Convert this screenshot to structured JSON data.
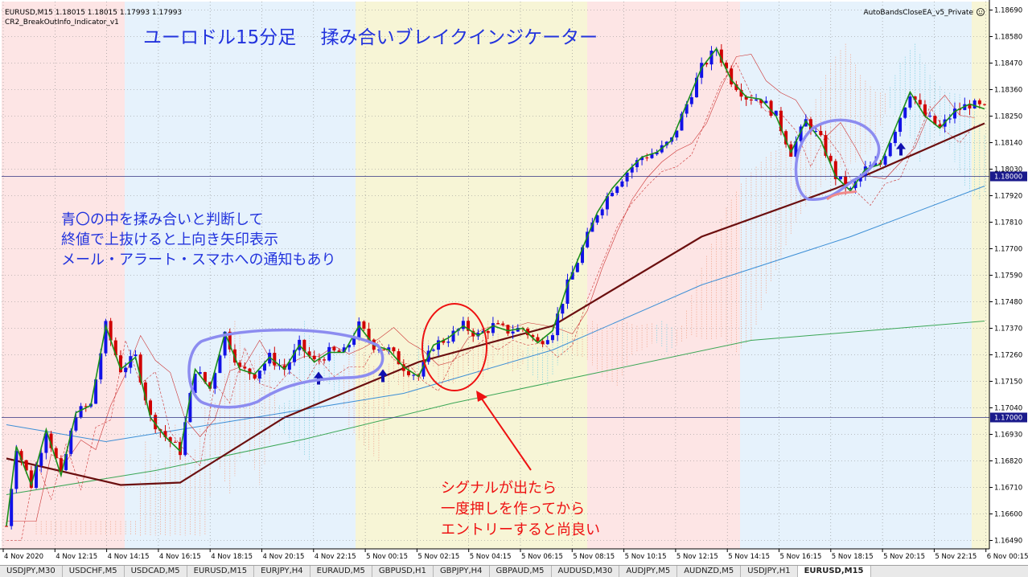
{
  "window": {
    "symbol_info": "EURUSD,M15  1.18015 1.18015 1.17993 1.17993",
    "indicator_name": "CR2_BreakOutInfo_Indicator_v1",
    "ea_label": "AutoBandsCloseEA_v5_Private"
  },
  "annotations": {
    "title": "ユーロドル15分足　 揉み合いブレイクインジケーター",
    "blue_note": [
      "青〇の中を揉み合いと判断して",
      "終値で上抜けると上向き矢印表示",
      "メール・アラート・スマホへの通知もあり"
    ],
    "red_note": [
      "シグナルが出たら",
      "一度押しを作ってから",
      "エントリーすると尚良い"
    ]
  },
  "price_axis": {
    "labels": [
      "1.18690",
      "1.18580",
      "1.18470",
      "1.18360",
      "1.18250",
      "1.18140",
      "1.18030",
      "1.17920",
      "1.17810",
      "1.17700",
      "1.17590",
      "1.17480",
      "1.17370",
      "1.17260",
      "1.17150",
      "1.17040",
      "1.16930",
      "1.16820",
      "1.16710",
      "1.16600",
      "1.16490"
    ],
    "highlight_labels": [
      "1.18000",
      "1.17000"
    ]
  },
  "time_axis": {
    "labels": [
      "4 Nov 2020",
      "4 Nov 12:15",
      "4 Nov 14:15",
      "4 Nov 16:15",
      "4 Nov 18:15",
      "4 Nov 20:15",
      "4 Nov 22:15",
      "5 Nov 00:15",
      "5 Nov 02:15",
      "5 Nov 04:15",
      "5 Nov 06:15",
      "5 Nov 08:15",
      "5 Nov 10:15",
      "5 Nov 12:15",
      "5 Nov 14:15",
      "5 Nov 16:15",
      "5 Nov 18:15",
      "5 Nov 20:15",
      "5 Nov 22:15",
      "6 Nov 00:15"
    ]
  },
  "symbol_tabs": [
    {
      "label": "USDJPY,M30",
      "active": false
    },
    {
      "label": "USDCHF,M5",
      "active": false
    },
    {
      "label": "USDCAD,M5",
      "active": false
    },
    {
      "label": "EURUSD,M15",
      "active": false
    },
    {
      "label": "EURJPY,H4",
      "active": false
    },
    {
      "label": "EURAUD,M5",
      "active": false
    },
    {
      "label": "GBPUSD,H1",
      "active": false
    },
    {
      "label": "GBPJPY,H4",
      "active": false
    },
    {
      "label": "GBPAUD,M5",
      "active": false
    },
    {
      "label": "AUDUSD,M30",
      "active": false
    },
    {
      "label": "AUDJPY,M5",
      "active": false
    },
    {
      "label": "AUDNZD,M5",
      "active": false
    },
    {
      "label": "USDJPY,H1",
      "active": false
    },
    {
      "label": "EURUSD,M15",
      "active": true
    }
  ],
  "colors": {
    "bull": "#1212e6",
    "bear": "#d00000",
    "zigzag": "#1a8f1a",
    "zone_red": "#fde5e5",
    "zone_blue": "#e6f2fc",
    "zone_yellow": "#f7f5d6",
    "annotation_blue": "#2233dd",
    "annotation_red": "#ee1111",
    "circle_blue": "#8c8cf0"
  },
  "chart_data": {
    "type": "candlestick",
    "symbol": "EURUSD",
    "timeframe": "M15",
    "ylim": [
      1.16455,
      1.18725
    ],
    "key_levels": [
      1.18,
      1.17
    ],
    "ohlc_path": [
      [
        0,
        1.1655
      ],
      [
        2,
        1.1688
      ],
      [
        5,
        1.1672
      ],
      [
        8,
        1.1695
      ],
      [
        11,
        1.1676
      ],
      [
        14,
        1.1702
      ],
      [
        17,
        1.1705
      ],
      [
        20,
        1.1738
      ],
      [
        23,
        1.172
      ],
      [
        26,
        1.1725
      ],
      [
        29,
        1.17
      ],
      [
        32,
        1.1692
      ],
      [
        35,
        1.1686
      ],
      [
        38,
        1.172
      ],
      [
        41,
        1.1712
      ],
      [
        44,
        1.1735
      ],
      [
        47,
        1.172
      ],
      [
        50,
        1.1718
      ],
      [
        53,
        1.1725
      ],
      [
        56,
        1.172
      ],
      [
        59,
        1.173
      ],
      [
        62,
        1.1723
      ],
      [
        65,
        1.1727
      ],
      [
        68,
        1.1727
      ],
      [
        71,
        1.1738
      ],
      [
        74,
        1.173
      ],
      [
        77,
        1.1728
      ],
      [
        80,
        1.1721
      ],
      [
        83,
        1.1717
      ],
      [
        86,
        1.173
      ],
      [
        89,
        1.1733
      ],
      [
        92,
        1.1738
      ],
      [
        95,
        1.1734
      ],
      [
        98,
        1.1738
      ],
      [
        101,
        1.1736
      ],
      [
        104,
        1.1737
      ],
      [
        107,
        1.1731
      ],
      [
        110,
        1.1736
      ],
      [
        113,
        1.1755
      ],
      [
        116,
        1.177
      ],
      [
        119,
        1.1785
      ],
      [
        122,
        1.1795
      ],
      [
        125,
        1.1802
      ],
      [
        128,
        1.1808
      ],
      [
        131,
        1.181
      ],
      [
        134,
        1.1815
      ],
      [
        137,
        1.183
      ],
      [
        140,
        1.1845
      ],
      [
        143,
        1.1853
      ],
      [
        146,
        1.184
      ],
      [
        149,
        1.1833
      ],
      [
        152,
        1.1832
      ],
      [
        155,
        1.1825
      ],
      [
        158,
        1.181
      ],
      [
        161,
        1.1823
      ],
      [
        164,
        1.1815
      ],
      [
        167,
        1.18
      ],
      [
        170,
        1.1794
      ],
      [
        173,
        1.1803
      ],
      [
        176,
        1.1805
      ],
      [
        179,
        1.182
      ],
      [
        182,
        1.1835
      ],
      [
        185,
        1.1825
      ],
      [
        188,
        1.182
      ],
      [
        191,
        1.1827
      ],
      [
        194,
        1.183
      ],
      [
        197,
        1.1828
      ]
    ],
    "signal_arrows": [
      1.1715,
      1.1716,
      1.181
    ],
    "ma_thick": [
      [
        0,
        1.1683
      ],
      [
        23,
        1.1672
      ],
      [
        35,
        1.1673
      ],
      [
        56,
        1.17
      ],
      [
        83,
        1.1723
      ],
      [
        110,
        1.1738
      ],
      [
        140,
        1.1775
      ],
      [
        167,
        1.1795
      ],
      [
        197,
        1.1822
      ]
    ],
    "ma_blue": [
      [
        0,
        1.1697
      ],
      [
        20,
        1.169
      ],
      [
        50,
        1.17
      ],
      [
        80,
        1.171
      ],
      [
        110,
        1.1728
      ],
      [
        140,
        1.1755
      ],
      [
        170,
        1.1775
      ],
      [
        197,
        1.1796
      ]
    ],
    "ma_green": [
      [
        0,
        1.1668
      ],
      [
        30,
        1.1678
      ],
      [
        60,
        1.1691
      ],
      [
        90,
        1.1706
      ],
      [
        120,
        1.1719
      ],
      [
        150,
        1.1732
      ],
      [
        197,
        1.174
      ]
    ]
  }
}
